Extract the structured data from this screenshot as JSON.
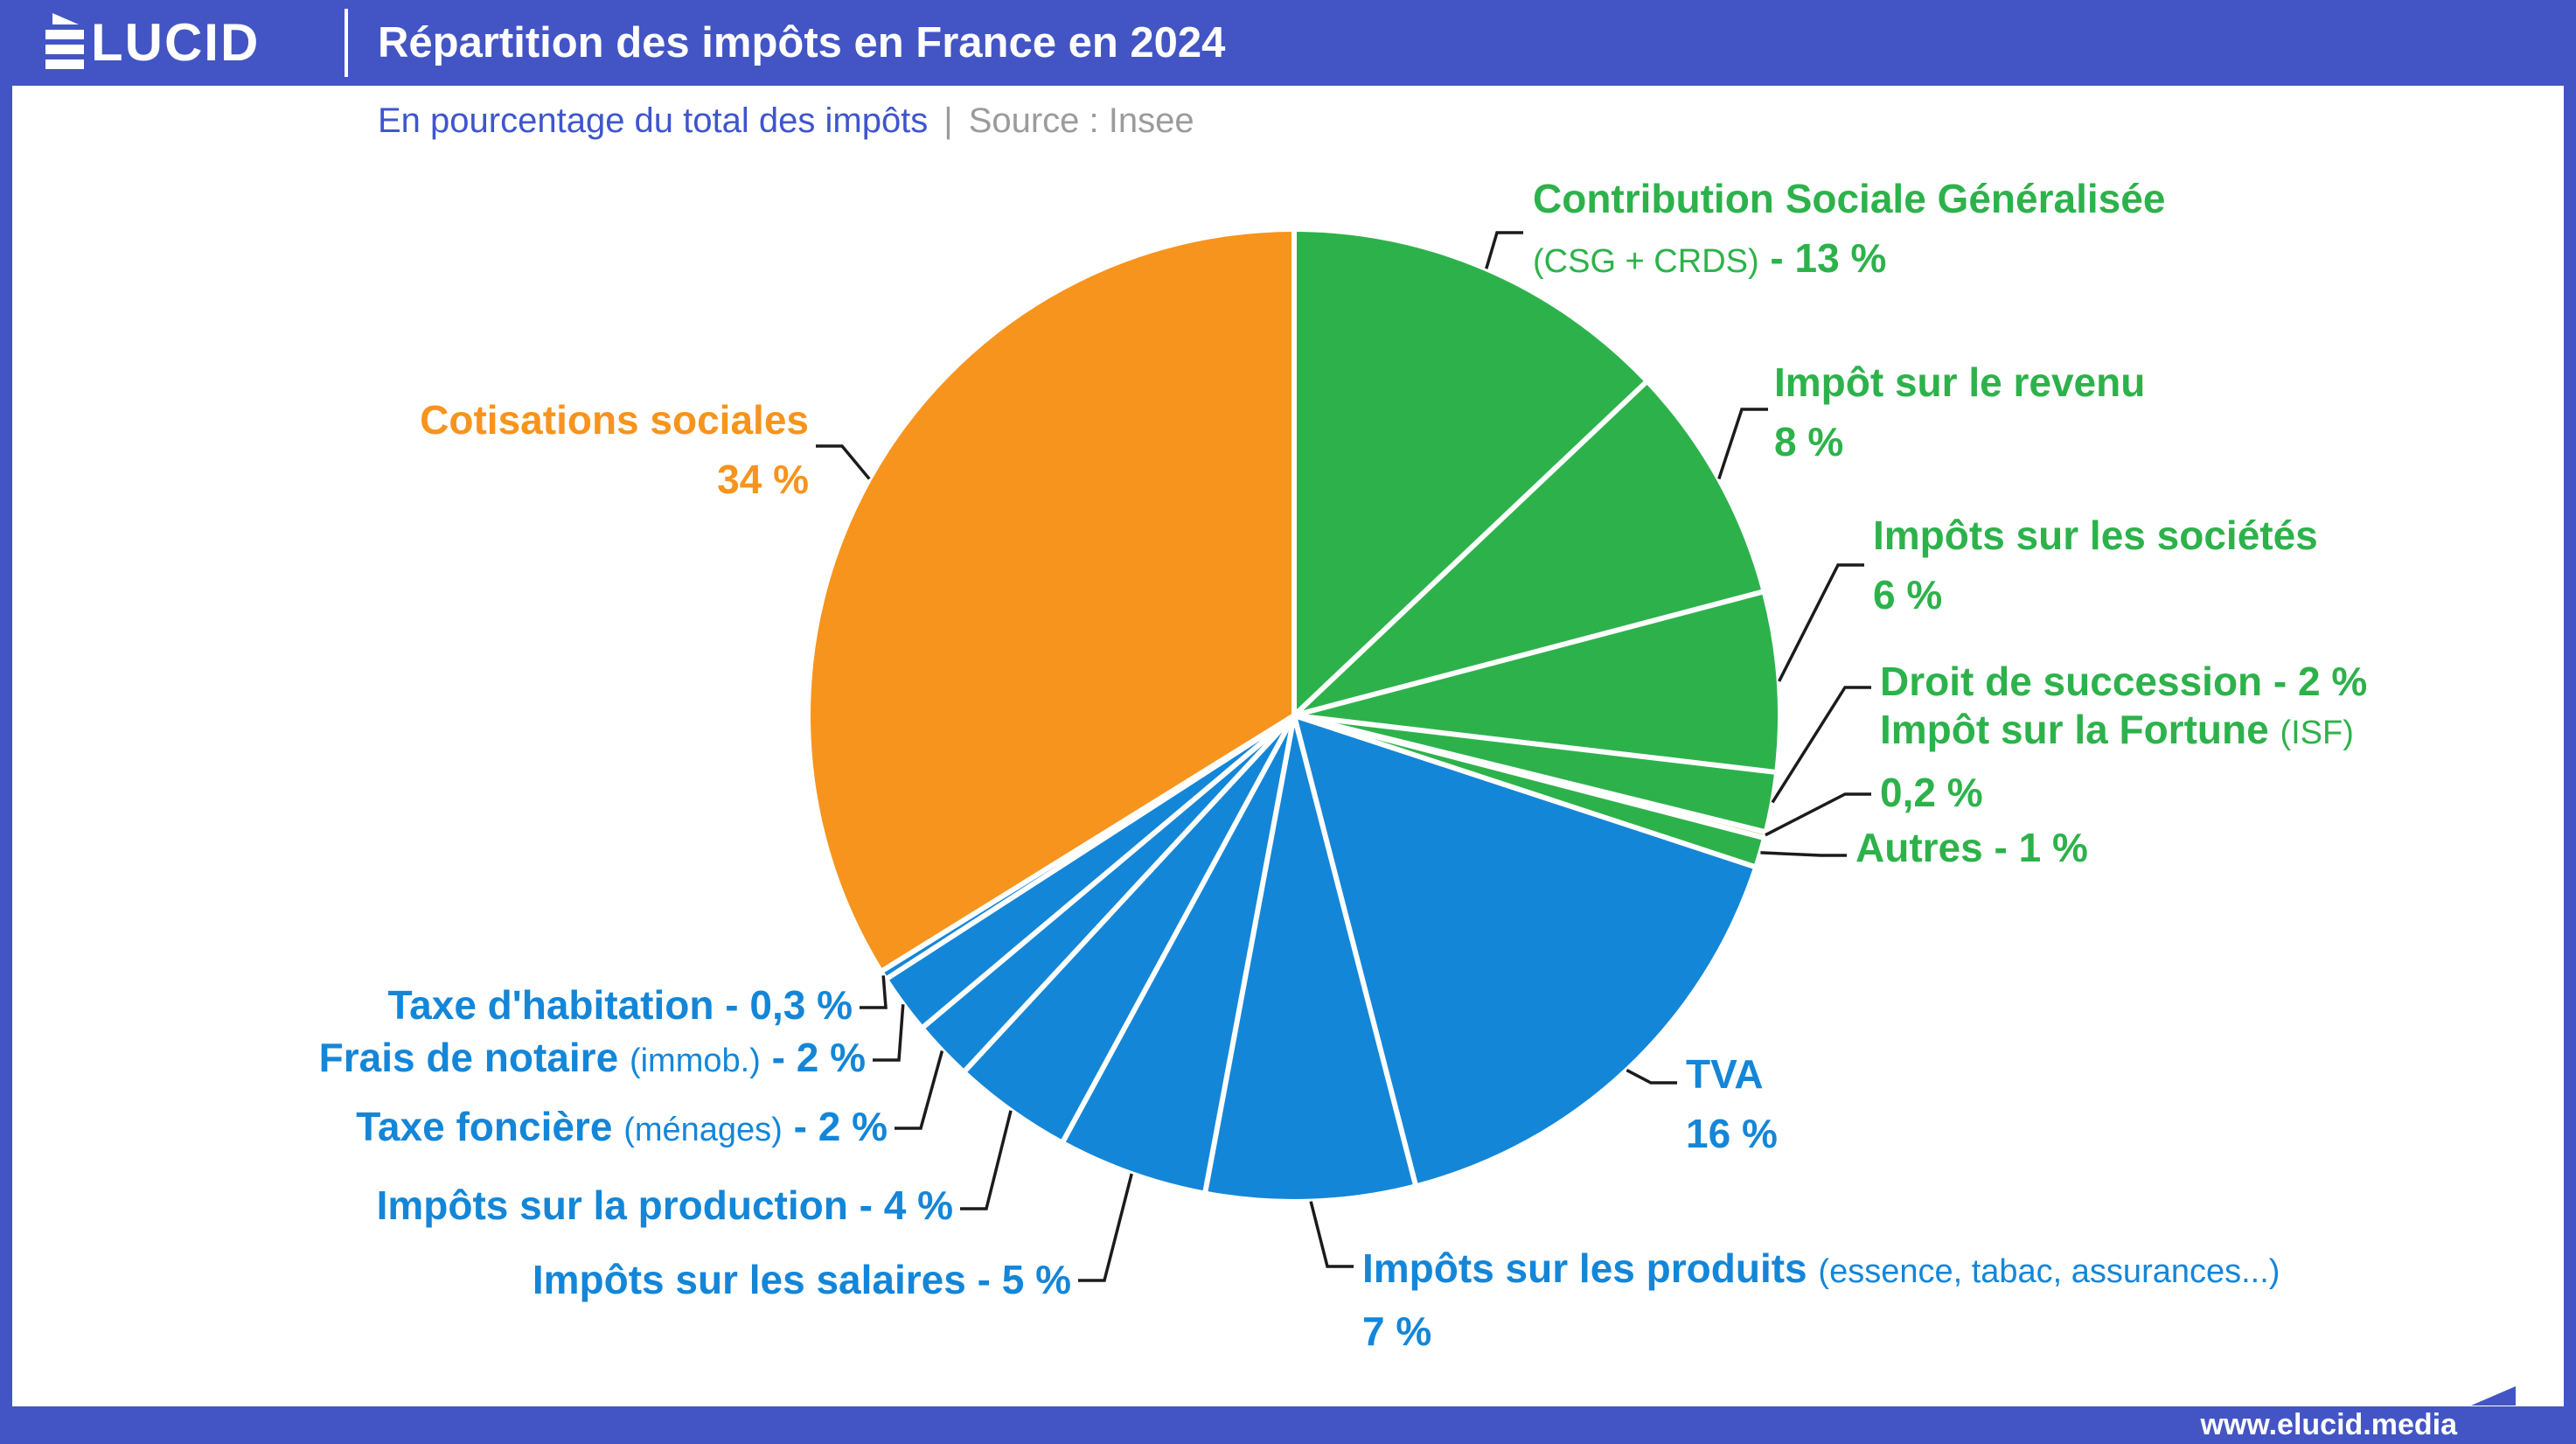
{
  "header": {
    "logo": {
      "text": "ÉLUCID",
      "display_rest": "LUCID"
    },
    "title": "Répartition des impôts en France en 2024"
  },
  "subtitle": {
    "text": "En pourcentage du total des impôts",
    "separator": "|",
    "source": "Source : Insee"
  },
  "footer": {
    "url": "www.elucid.media"
  },
  "colors": {
    "green": "#2db24b",
    "light_green": "#c8dc96",
    "blue": "#1486d8",
    "orange": "#f7941d",
    "frame_blue": "#4355c4",
    "subtitle_blue": "#3f55cd",
    "source_gray": "#9b9b9b",
    "leader_line": "#1b1b1b"
  },
  "chart_data": {
    "type": "pie",
    "title": "Répartition des impôts en France en 2024",
    "unit": "En pourcentage du total des impôts",
    "source": "Insee",
    "start_angle_deg": 0,
    "direction": "clockwise",
    "slice_divider_color": "#ffffff",
    "slices": [
      {
        "id": "csg",
        "label": "Contribution Sociale Généralisée",
        "sublabel": "(CSG + CRDS)",
        "value": 13,
        "value_label": "- 13 %",
        "color": "#2db24b"
      },
      {
        "id": "revenu",
        "label": "Impôt sur le revenu",
        "value": 8,
        "value_label": "8 %",
        "color": "#2db24b"
      },
      {
        "id": "societes",
        "label": "Impôts sur les sociétés",
        "value": 6,
        "value_label": "6 %",
        "color": "#2db24b"
      },
      {
        "id": "succession",
        "label": "Droit de succession",
        "value": 2,
        "value_label": "- 2 %",
        "color": "#2db24b"
      },
      {
        "id": "isf",
        "label": "Impôt sur la Fortune",
        "sublabel": "(ISF)",
        "value": 0.2,
        "value_label": "0,2 %",
        "color": "#c8dc96"
      },
      {
        "id": "autres",
        "label": "Autres",
        "value": 1,
        "value_label": "- 1 %",
        "color": "#2db24b"
      },
      {
        "id": "tva",
        "label": "TVA",
        "value": 16,
        "value_label": "16 %",
        "color": "#1486d8"
      },
      {
        "id": "produits",
        "label": "Impôts sur les produits",
        "sublabel": "(essence, tabac, assurances...)",
        "value": 7,
        "value_label": "7 %",
        "color": "#1486d8"
      },
      {
        "id": "salaires",
        "label": "Impôts sur les salaires",
        "value": 5,
        "value_label": "- 5 %",
        "color": "#1486d8"
      },
      {
        "id": "production",
        "label": "Impôts sur la production",
        "value": 4,
        "value_label": "- 4 %",
        "color": "#1486d8"
      },
      {
        "id": "fonciere",
        "label": "Taxe foncière",
        "sublabel": "(ménages)",
        "value": 2,
        "value_label": "- 2 %",
        "color": "#1486d8"
      },
      {
        "id": "notaire",
        "label": "Frais de notaire",
        "sublabel": "(immob.)",
        "value": 2,
        "value_label": "- 2 %",
        "color": "#1486d8"
      },
      {
        "id": "habitation",
        "label": "Taxe d'habitation",
        "value": 0.3,
        "value_label": "- 0,3 %",
        "color": "#1486d8"
      },
      {
        "id": "cotisations",
        "label": "Cotisations sociales",
        "value": 34,
        "value_label": "34 %",
        "color": "#f7941d"
      }
    ]
  }
}
